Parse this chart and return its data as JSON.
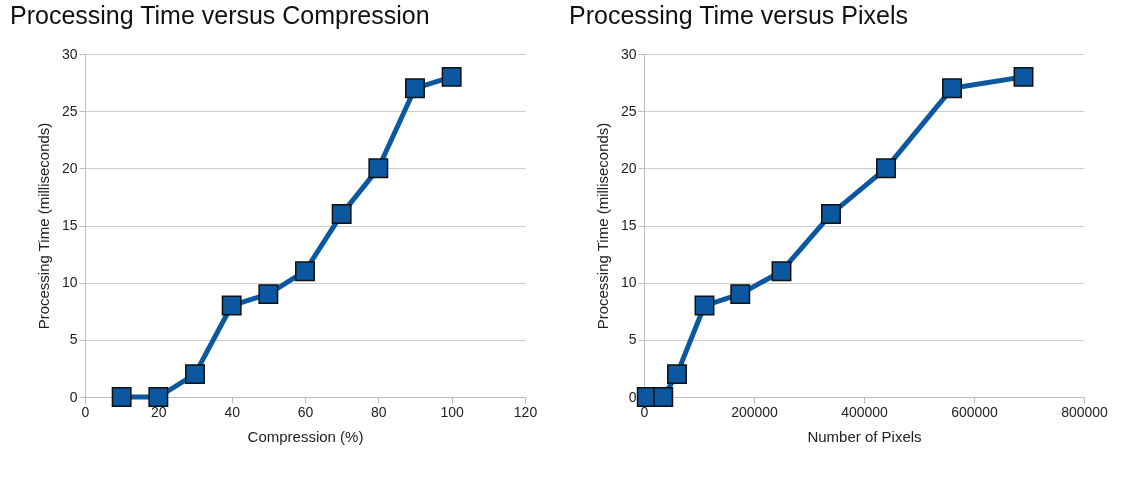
{
  "chart_data": [
    {
      "type": "line",
      "title": "Processing Time versus Compression",
      "xlabel": "Compression (%)",
      "ylabel": "Processing Time (milliseconds)",
      "x": [
        10,
        20,
        30,
        40,
        50,
        60,
        70,
        80,
        90,
        100
      ],
      "series": [
        {
          "color": "#0b57a0",
          "values": [
            0,
            0,
            2,
            8,
            9,
            11,
            16,
            20,
            27,
            28
          ]
        }
      ],
      "xlim": [
        0,
        120
      ],
      "xticks": [
        0,
        20,
        40,
        60,
        80,
        100,
        120
      ],
      "ylim": [
        0,
        30
      ],
      "yticks": [
        0,
        5,
        10,
        15,
        20,
        25,
        30
      ],
      "grid": "y",
      "marker": "square",
      "line_style": "solid"
    },
    {
      "type": "line",
      "title": "Processing Time versus Pixels",
      "xlabel": "Number of Pixels",
      "ylabel": "Processing Time (milliseconds)",
      "x": [
        5000,
        35000,
        60000,
        110000,
        175000,
        250000,
        340000,
        440000,
        560000,
        690000
      ],
      "series": [
        {
          "color": "#0b57a0",
          "values": [
            0,
            0,
            2,
            8,
            9,
            11,
            16,
            20,
            27,
            28
          ]
        }
      ],
      "xlim": [
        0,
        800000
      ],
      "xticks": [
        0,
        200000,
        400000,
        600000,
        800000
      ],
      "ylim": [
        0,
        30
      ],
      "yticks": [
        0,
        5,
        10,
        15,
        20,
        25,
        30
      ],
      "grid": "y",
      "marker": "square",
      "line_style": "solid"
    }
  ]
}
